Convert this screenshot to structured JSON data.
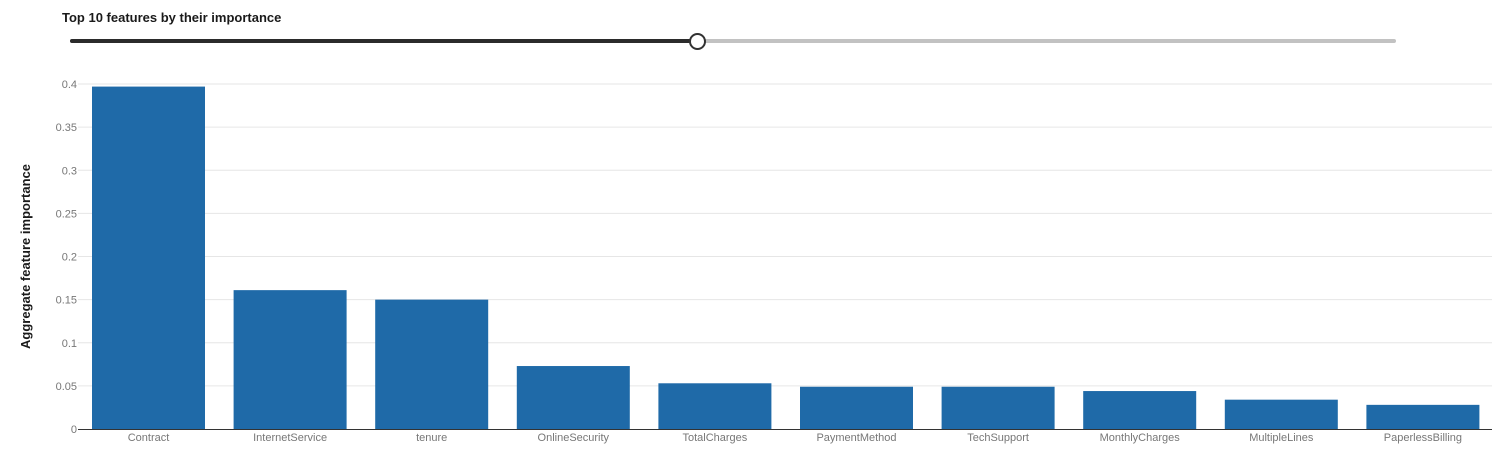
{
  "slider": {
    "title": "Top 10 features by their importance",
    "value_fraction": 0.473
  },
  "colors": {
    "bar": "#1f6aa8",
    "grid": "#e6e6e6",
    "axis": "#333333",
    "slider_active": "#2b2b2b",
    "slider_inactive": "#c2c2c2"
  },
  "chart_data": {
    "type": "bar",
    "title": "",
    "xlabel": "",
    "ylabel": "Aggregate feature importance",
    "ylim": [
      0,
      0.4
    ],
    "yticks": [
      "0",
      "0.05",
      "0.1",
      "0.15",
      "0.2",
      "0.25",
      "0.3",
      "0.35",
      "0.4"
    ],
    "grid": true,
    "categories": [
      "Contract",
      "InternetService",
      "tenure",
      "OnlineSecurity",
      "TotalCharges",
      "PaymentMethod",
      "TechSupport",
      "MonthlyCharges",
      "MultipleLines",
      "PaperlessBilling"
    ],
    "values": [
      0.397,
      0.161,
      0.15,
      0.073,
      0.053,
      0.049,
      0.049,
      0.044,
      0.034,
      0.028
    ]
  }
}
